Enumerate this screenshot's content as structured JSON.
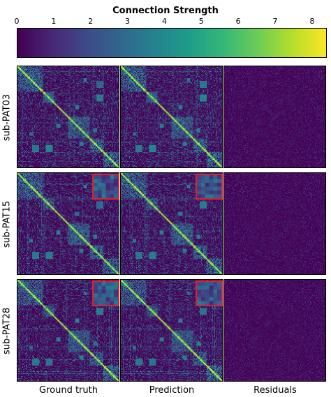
{
  "chart_data": {
    "type": "heatmap",
    "colormap": "viridis",
    "colorbar": {
      "title": "Connection Strength",
      "vmin": 0,
      "vmax": 8.4,
      "ticks": [
        "0",
        "1",
        "2",
        "3",
        "4",
        "5",
        "6",
        "7",
        "8"
      ]
    },
    "rows": [
      "sub-PAT03",
      "sub-PAT15",
      "sub-PAT28"
    ],
    "columns": [
      "Ground truth",
      "Prediction",
      "Residuals"
    ],
    "insets": [
      {
        "row": "sub-PAT15",
        "columns": [
          "Ground truth",
          "Prediction"
        ],
        "color": "#e0202a"
      },
      {
        "row": "sub-PAT28",
        "columns": [
          "Ground truth",
          "Prediction"
        ],
        "color": "#e0202a"
      }
    ],
    "grid": false
  }
}
